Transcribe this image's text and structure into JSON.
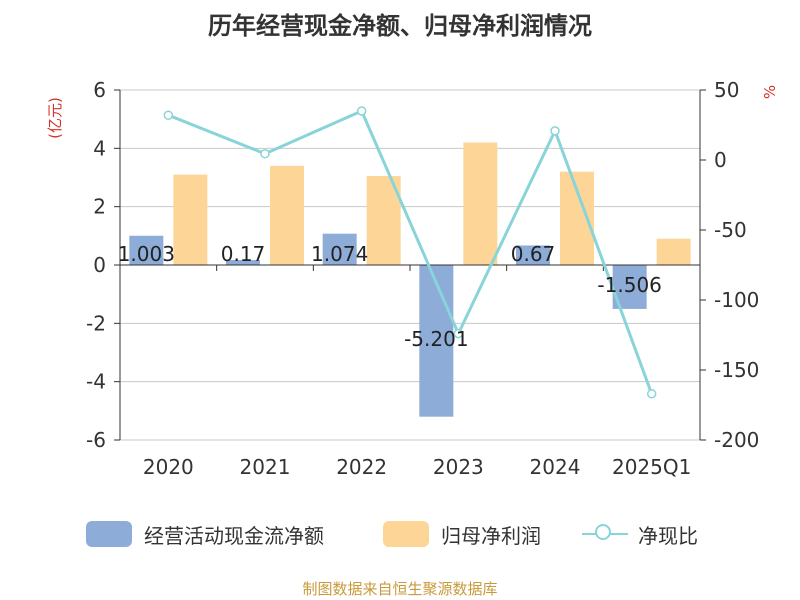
{
  "title": "历年经营现金净额、归母净利润情况",
  "source_note": "制图数据来自恒生聚源数据库",
  "chart_data": {
    "type": "bar",
    "categories": [
      "2020",
      "2021",
      "2022",
      "2023",
      "2024",
      "2025Q1"
    ],
    "y_left": {
      "label": "(亿元)",
      "ticks": [
        "6",
        "4",
        "2",
        "0",
        "-2",
        "-4",
        "-6"
      ],
      "ylim": [
        -6,
        6
      ]
    },
    "y_right": {
      "label": "%",
      "ticks": [
        "50",
        "0",
        "-50",
        "-100",
        "-150",
        "-200"
      ],
      "ylim": [
        -200,
        50
      ]
    },
    "series": [
      {
        "name": "经营活动现金流净额",
        "kind": "bar",
        "axis": "left",
        "color": "#8eacd8",
        "values": [
          1.003,
          0.17,
          1.074,
          -5.201,
          0.67,
          -1.506
        ],
        "labels": [
          "1.003",
          "0.17",
          "1.074",
          "-5.201",
          "0.67",
          "-1.506"
        ]
      },
      {
        "name": "归母净利润",
        "kind": "bar",
        "axis": "left",
        "color": "#fdd697",
        "values": [
          3.1,
          3.4,
          3.05,
          4.2,
          3.2,
          0.9
        ]
      },
      {
        "name": "净现比",
        "kind": "line",
        "axis": "right",
        "color": "#88d4d8",
        "values": [
          32,
          4.5,
          35,
          -124,
          20.8,
          -167
        ]
      }
    ],
    "grid": true,
    "legend_position": "bottom"
  }
}
